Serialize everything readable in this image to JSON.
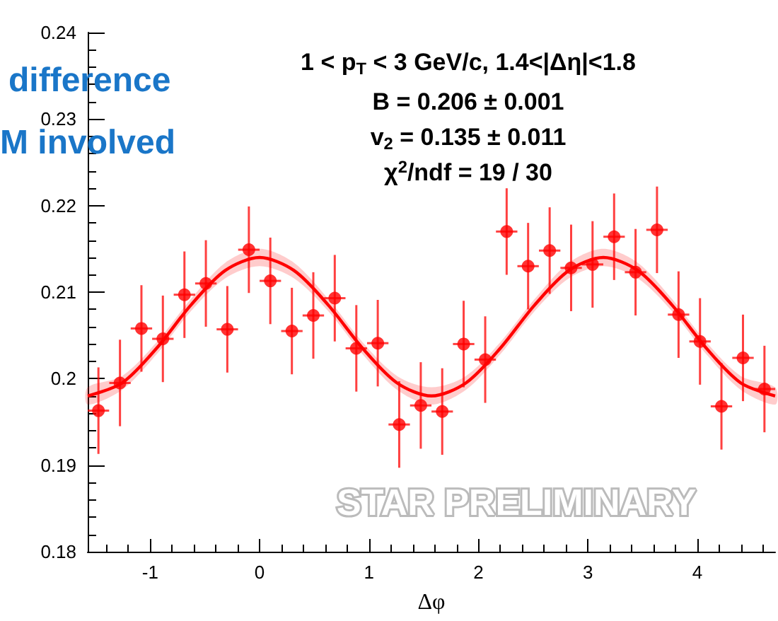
{
  "chart_data": {
    "type": "scatter",
    "title": "1 < p$_{T}$ < 3 GeV/c, 1.4<|Δη|<1.8",
    "xlabel": "Δφ",
    "annotations": [
      "B = 0.206 ± 0.001",
      "v$_{2}$ = 0.135 ± 0.011",
      "χ$^{2}$/ndf = 19 / 30",
      "STAR PRELIMINARY",
      "difference",
      "M involved"
    ],
    "xlim": [
      -1.571,
      4.712
    ],
    "ylim": [
      0.18,
      0.24
    ],
    "xticks": [
      -1,
      0,
      1,
      2,
      3,
      4
    ],
    "yticks": [
      0.18,
      0.19,
      0.2,
      0.21,
      0.22,
      0.23,
      0.24
    ],
    "grid": false,
    "series": [
      {
        "color": "#ff0000",
        "marker": "circle",
        "x": [
          -1.473,
          -1.276,
          -1.08,
          -0.884,
          -0.687,
          -0.491,
          -0.295,
          -0.098,
          0.098,
          0.295,
          0.491,
          0.687,
          0.884,
          1.08,
          1.276,
          1.473,
          1.669,
          1.865,
          2.062,
          2.258,
          2.454,
          2.651,
          2.847,
          3.043,
          3.24,
          3.436,
          3.632,
          3.829,
          4.025,
          4.221,
          4.418,
          4.614
        ],
        "values": [
          0.1963,
          0.1995,
          0.2058,
          0.2046,
          0.2097,
          0.211,
          0.2057,
          0.2149,
          0.2113,
          0.2055,
          0.2073,
          0.2093,
          0.2035,
          0.2041,
          0.1947,
          0.1969,
          0.1962,
          0.204,
          0.2022,
          0.217,
          0.213,
          0.2148,
          0.2128,
          0.2132,
          0.2164,
          0.2123,
          0.2172,
          0.2074,
          0.2043,
          0.1968,
          0.2024,
          0.1988
        ],
        "errors": [
          0.005,
          0.005,
          0.005,
          0.005,
          0.005,
          0.005,
          0.005,
          0.005,
          0.005,
          0.005,
          0.005,
          0.005,
          0.005,
          0.005,
          0.005,
          0.005,
          0.005,
          0.005,
          0.005,
          0.005,
          0.005,
          0.005,
          0.005,
          0.005,
          0.005,
          0.005,
          0.005,
          0.005,
          0.005,
          0.005,
          0.005,
          0.005
        ],
        "xerrors": [
          0.098,
          0.098,
          0.098,
          0.098,
          0.098,
          0.098,
          0.098,
          0.098,
          0.098,
          0.098,
          0.098,
          0.098,
          0.098,
          0.098,
          0.098,
          0.098,
          0.098,
          0.098,
          0.098,
          0.098,
          0.098,
          0.098,
          0.098,
          0.098,
          0.098,
          0.098,
          0.098,
          0.098,
          0.098,
          0.098,
          0.098,
          0.098
        ]
      },
      {
        "type": "line",
        "color": "#ff0000",
        "marker": "none",
        "x": [
          -1.571,
          -1.257,
          -0.942,
          -0.628,
          -0.314,
          0,
          0.314,
          0.628,
          0.942,
          1.257,
          1.571,
          1.885,
          2.199,
          2.513,
          2.827,
          3.142,
          3.456,
          3.77,
          4.084,
          4.398,
          4.712
        ],
        "values": [
          0.198,
          0.1995,
          0.2035,
          0.2085,
          0.2125,
          0.214,
          0.2125,
          0.2085,
          0.2035,
          0.1995,
          0.198,
          0.1995,
          0.2035,
          0.2085,
          0.2125,
          0.214,
          0.2125,
          0.2085,
          0.2035,
          0.1995,
          0.198
        ],
        "lower": [
          0.197,
          0.1987,
          0.2028,
          0.2078,
          0.2116,
          0.213,
          0.2116,
          0.2078,
          0.2028,
          0.1987,
          0.197,
          0.1987,
          0.2028,
          0.2078,
          0.2116,
          0.213,
          0.2116,
          0.2078,
          0.2028,
          0.1987,
          0.197
        ],
        "upper": [
          0.199,
          0.2003,
          0.2042,
          0.2092,
          0.2134,
          0.215,
          0.2134,
          0.2092,
          0.2042,
          0.2003,
          0.199,
          0.2003,
          0.2042,
          0.2092,
          0.2134,
          0.215,
          0.2134,
          0.2092,
          0.2042,
          0.2003,
          0.199
        ]
      }
    ]
  }
}
